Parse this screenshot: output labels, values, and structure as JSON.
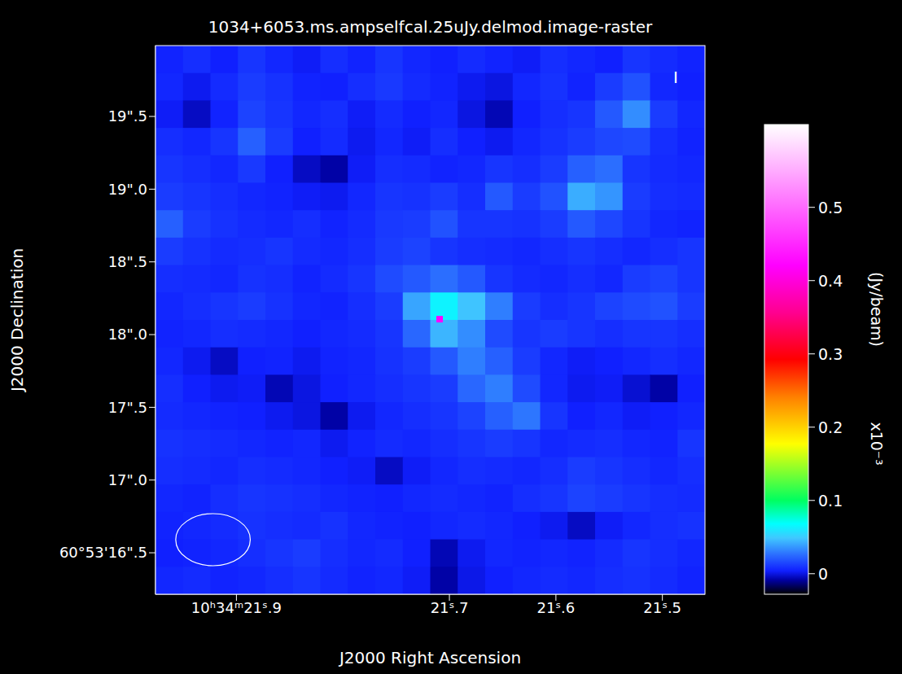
{
  "chart_data": {
    "type": "heatmap",
    "title": "1034+6053.ms.ampselfcal.25uJy.delmod.image-raster",
    "x_label": "J2000 Right Ascension",
    "y_label": "J2000 Declination",
    "annotations": [
      "I"
    ],
    "xlim": [
      21.976,
      21.46
    ],
    "xticks": [
      {
        "value": 21.9,
        "label": "10ʰ34ᵐ21ˢ.9"
      },
      {
        "value": 21.7,
        "label": "21ˢ.7"
      },
      {
        "value": 21.6,
        "label": "21ˢ.6"
      },
      {
        "value": 21.5,
        "label": "21ˢ.5"
      }
    ],
    "ylim": [
      16.215,
      19.987
    ],
    "yticks": [
      {
        "value": 16.5,
        "label": "60°53'16\".5"
      },
      {
        "value": 17,
        "label": "17\".0"
      },
      {
        "value": 17.5,
        "label": "17\".5"
      },
      {
        "value": 18,
        "label": "18\".0"
      },
      {
        "value": 18.5,
        "label": "18\".5"
      },
      {
        "value": 19,
        "label": "19\".0"
      },
      {
        "value": 19.5,
        "label": "19\".5"
      }
    ],
    "cells": {
      "x": [
        21.9631,
        21.9373,
        21.9115,
        21.8857,
        21.8599,
        21.8341,
        21.8083,
        21.7825,
        21.7567,
        21.7309,
        21.7051,
        21.6793,
        21.6535,
        21.6277,
        21.6019,
        21.5761,
        21.5503,
        21.5245,
        21.4987,
        21.4729
      ],
      "y": [
        19.8927,
        19.7041,
        19.5155,
        19.3269,
        19.1383,
        18.9497,
        18.7611,
        18.5725,
        18.3839,
        18.1953,
        18.0067,
        17.8181,
        17.6295,
        17.4409,
        17.2523,
        17.0637,
        16.8751,
        16.6865,
        16.4979,
        16.3093
      ],
      "values": [
        [
          0.005,
          0.008,
          0.004,
          0.01,
          0.006,
          0.003,
          0.008,
          0.005,
          0.01,
          0.006,
          0.004,
          0.007,
          0.005,
          0.003,
          0.008,
          0.006,
          0.004,
          0.01,
          0.007,
          0.005
        ],
        [
          0.006,
          0.002,
          0.007,
          0.012,
          0.009,
          0.005,
          0.004,
          0.008,
          0.011,
          0.007,
          0.005,
          0.002,
          0.0,
          0.006,
          0.009,
          0.005,
          0.012,
          0.018,
          0.006,
          0.004
        ],
        [
          0.003,
          -0.004,
          0.005,
          0.014,
          0.01,
          0.006,
          0.008,
          0.003,
          0.007,
          0.004,
          0.006,
          0.0,
          -0.006,
          0.004,
          0.008,
          0.01,
          0.02,
          0.034,
          0.012,
          0.006
        ],
        [
          0.008,
          0.006,
          0.01,
          0.022,
          0.012,
          0.004,
          0.007,
          0.002,
          0.006,
          0.003,
          0.008,
          0.004,
          0.002,
          0.006,
          0.009,
          0.012,
          0.015,
          0.016,
          0.008,
          0.005
        ],
        [
          0.01,
          0.008,
          0.006,
          0.011,
          0.004,
          -0.004,
          -0.008,
          0.003,
          0.008,
          0.007,
          0.005,
          0.006,
          0.01,
          0.008,
          0.012,
          0.022,
          0.026,
          0.01,
          0.007,
          0.006
        ],
        [
          0.012,
          0.01,
          0.008,
          0.006,
          0.005,
          0.003,
          0.002,
          0.006,
          0.01,
          0.009,
          0.012,
          0.008,
          0.02,
          0.012,
          0.018,
          0.042,
          0.036,
          0.012,
          0.008,
          0.007
        ],
        [
          0.022,
          0.012,
          0.009,
          0.007,
          0.006,
          0.008,
          0.005,
          0.007,
          0.011,
          0.012,
          0.018,
          0.01,
          0.01,
          0.009,
          0.012,
          0.02,
          0.015,
          0.01,
          0.006,
          0.005
        ],
        [
          0.012,
          0.009,
          0.007,
          0.008,
          0.01,
          0.007,
          0.006,
          0.008,
          0.012,
          0.014,
          0.01,
          0.008,
          0.007,
          0.006,
          0.008,
          0.01,
          0.008,
          0.006,
          0.008,
          0.01
        ],
        [
          0.008,
          0.007,
          0.006,
          0.009,
          0.008,
          0.005,
          0.007,
          0.01,
          0.016,
          0.02,
          0.026,
          0.02,
          0.01,
          0.007,
          0.006,
          0.008,
          0.006,
          0.012,
          0.014,
          0.01
        ],
        [
          0.006,
          0.008,
          0.01,
          0.012,
          0.009,
          0.006,
          0.005,
          0.008,
          0.012,
          0.04,
          0.064,
          0.048,
          0.03,
          0.012,
          0.008,
          0.01,
          0.014,
          0.016,
          0.018,
          0.012
        ],
        [
          0.005,
          0.006,
          0.008,
          0.007,
          0.006,
          0.004,
          0.006,
          0.007,
          0.01,
          0.024,
          0.044,
          0.034,
          0.016,
          0.01,
          0.012,
          0.01,
          0.008,
          0.01,
          0.01,
          0.008
        ],
        [
          0.006,
          0.002,
          -0.004,
          0.004,
          0.005,
          0.002,
          0.005,
          0.006,
          0.009,
          0.012,
          0.02,
          0.03,
          0.022,
          0.012,
          0.006,
          0.003,
          0.004,
          0.006,
          0.008,
          0.006
        ],
        [
          0.008,
          0.004,
          0.002,
          0.003,
          -0.006,
          0.0,
          0.004,
          0.006,
          0.008,
          0.01,
          0.012,
          0.024,
          0.03,
          0.016,
          0.006,
          0.002,
          0.003,
          -0.002,
          -0.008,
          0.004
        ],
        [
          0.007,
          0.006,
          0.005,
          0.004,
          0.002,
          0.0,
          -0.008,
          0.002,
          0.006,
          0.008,
          0.01,
          0.014,
          0.022,
          0.028,
          0.01,
          0.004,
          0.006,
          0.003,
          0.004,
          0.006
        ],
        [
          0.009,
          0.008,
          0.007,
          0.006,
          0.005,
          0.006,
          0.002,
          0.005,
          0.007,
          0.006,
          0.008,
          0.01,
          0.012,
          0.01,
          0.006,
          0.007,
          0.008,
          0.006,
          0.005,
          0.01
        ],
        [
          0.008,
          0.007,
          0.006,
          0.008,
          0.007,
          0.006,
          0.004,
          0.003,
          -0.004,
          0.003,
          0.006,
          0.008,
          0.007,
          0.006,
          0.008,
          0.012,
          0.01,
          0.008,
          0.006,
          0.008
        ],
        [
          0.006,
          0.005,
          0.008,
          0.01,
          0.009,
          0.008,
          0.006,
          0.005,
          0.004,
          0.006,
          0.007,
          0.006,
          0.005,
          0.008,
          0.01,
          0.014,
          0.012,
          0.01,
          0.008,
          0.007
        ],
        [
          0.005,
          0.006,
          0.007,
          0.009,
          0.008,
          0.007,
          0.009,
          0.006,
          0.005,
          0.004,
          0.006,
          0.007,
          0.006,
          0.004,
          0.002,
          -0.004,
          0.003,
          0.006,
          0.008,
          0.009
        ],
        [
          0.004,
          0.005,
          0.006,
          0.008,
          0.01,
          0.012,
          0.008,
          0.006,
          0.007,
          0.004,
          -0.006,
          0.002,
          0.006,
          0.005,
          0.006,
          0.005,
          0.007,
          0.01,
          0.008,
          0.006
        ],
        [
          0.006,
          0.007,
          0.005,
          0.006,
          0.008,
          0.01,
          0.007,
          0.005,
          0.006,
          0.003,
          -0.008,
          0.001,
          0.004,
          0.006,
          0.007,
          0.006,
          0.008,
          0.009,
          0.007,
          0.005
        ]
      ]
    },
    "peak_pixel": {
      "x": 21.7092,
      "y": 18.106,
      "value": 0.42
    },
    "beam": {
      "x": 21.922,
      "y": 16.59,
      "width": 0.07,
      "height": 0.358
    },
    "colorbar": {
      "range": [
        -0.028,
        0.613
      ],
      "ticks": [
        0,
        0.1,
        0.2,
        0.3,
        0.4,
        0.5
      ],
      "label": "(Jy/beam)",
      "scale_label": "x10⁻³"
    }
  }
}
